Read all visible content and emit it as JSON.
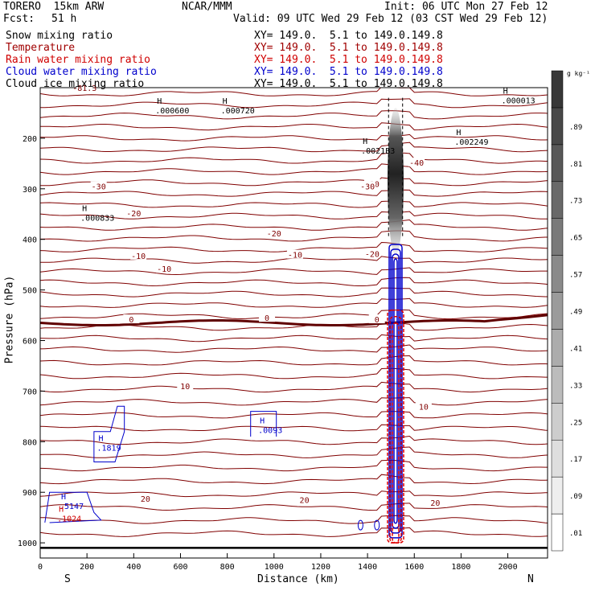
{
  "header": {
    "title": "TORERO  15km ARW",
    "org": "NCAR/MMM",
    "init": "Init: 06 UTC Mon 27 Feb 12",
    "fcst_label": "Fcst:",
    "fcst_value": "51 h",
    "valid": "Valid: 09 UTC Wed 29 Feb 12 (03 CST Wed 29 Feb 12)"
  },
  "fields": [
    {
      "name": "Snow mixing ratio",
      "color": "#000000",
      "xy": ""
    },
    {
      "name": "Temperature",
      "color": "#a00000",
      "xy": "XY= 149.0.  5.1 to 149.0.149.8"
    },
    {
      "name": "Rain water mixing ratio",
      "color": "#d00000",
      "xy": "XY= 149.0.  5.1 to 149.0.149.8"
    },
    {
      "name": "Cloud water mixing ratio",
      "color": "#0000cc",
      "xy": "XY= 149.0.  5.1 to 149.0.149.8"
    },
    {
      "name": "Cloud ice mixing ratio",
      "color": "#000000",
      "xy": "XY= 149.0.  5.1 to 149.0.149.8"
    }
  ],
  "first_xy": "XY= 149.0.  5.1 to 149.0.149.8",
  "colorbar": {
    "unit": "g kg⁻¹",
    "labels": [
      ".01",
      ".09",
      ".17",
      ".25",
      ".33",
      ".41",
      ".49",
      ".57",
      ".65",
      ".73",
      ".81",
      ".89"
    ]
  },
  "chart_data": {
    "type": "contour",
    "xlabel": "Distance (km)",
    "ylabel": "Pressure (hPa)",
    "x_ticks": [
      0,
      200,
      400,
      600,
      800,
      1000,
      1200,
      1400,
      1600,
      1800,
      2000
    ],
    "y_ticks": [
      200,
      300,
      400,
      500,
      600,
      700,
      800,
      900,
      1000
    ],
    "xlim": [
      0,
      2170
    ],
    "ylim": [
      1030,
      100
    ],
    "end_labels": {
      "left": "S",
      "right": "N"
    },
    "temperature_labels": [
      {
        "x": 970,
        "p": 555,
        "text": "0",
        "thick": true
      },
      {
        "x": 390,
        "p": 558,
        "text": "0"
      },
      {
        "x": 1440,
        "p": 558,
        "text": "0"
      },
      {
        "x": 1090,
        "p": 430,
        "text": "-10"
      },
      {
        "x": 420,
        "p": 432,
        "text": "-10"
      },
      {
        "x": 1420,
        "p": 428,
        "text": "-20"
      },
      {
        "x": 400,
        "p": 348,
        "text": "-20"
      },
      {
        "x": 1420,
        "p": 290,
        "text": "-30"
      },
      {
        "x": 250,
        "p": 295,
        "text": "-30"
      },
      {
        "x": 1610,
        "p": 248,
        "text": "-40"
      },
      {
        "x": 1000,
        "p": 388,
        "text": "-20"
      },
      {
        "x": 530,
        "p": 458,
        "text": "-10"
      },
      {
        "x": 1400,
        "p": 295,
        "text": "-30"
      },
      {
        "x": 620,
        "p": 690,
        "text": "10"
      },
      {
        "x": 1640,
        "p": 730,
        "text": "10"
      },
      {
        "x": 1130,
        "p": 915,
        "text": "20"
      },
      {
        "x": 1690,
        "p": 920,
        "text": "20"
      },
      {
        "x": 450,
        "p": 912,
        "text": "20"
      },
      {
        "x": 190,
        "p": 100,
        "text": "-81.3"
      }
    ],
    "maxima": [
      {
        "x": 520,
        "p": 138,
        "value": ".000600",
        "color": "#000000"
      },
      {
        "x": 800,
        "p": 138,
        "value": ".000720",
        "color": "#000000"
      },
      {
        "x": 1400,
        "p": 218,
        "value": ".0021B3",
        "color": "#000000"
      },
      {
        "x": 1800,
        "p": 200,
        "value": ".002249",
        "color": "#000000"
      },
      {
        "x": 2000,
        "p": 118,
        "value": ".000013",
        "color": "#000000"
      },
      {
        "x": 200,
        "p": 350,
        "value": ".000833",
        "color": "#000000"
      },
      {
        "x": 270,
        "p": 805,
        "value": ".1819",
        "color": "#0000cc"
      },
      {
        "x": 960,
        "p": 770,
        "value": ".0093",
        "color": "#0000cc"
      },
      {
        "x": 110,
        "p": 920,
        "value": ".5147",
        "color": "#0000cc"
      },
      {
        "x": 100,
        "p": 945,
        "value": ".1024",
        "color": "#d00000"
      }
    ],
    "snow_shading": {
      "x": 1520,
      "p_top": 140,
      "p_bottom": 430,
      "max": 0.89
    },
    "cloud_water_column": {
      "x": 1520,
      "p_top": 410,
      "p_bottom": 990
    },
    "rain_column": {
      "x": 1520,
      "p_top": 540,
      "p_bottom": 1000
    },
    "surface": {
      "p": 1010
    }
  }
}
